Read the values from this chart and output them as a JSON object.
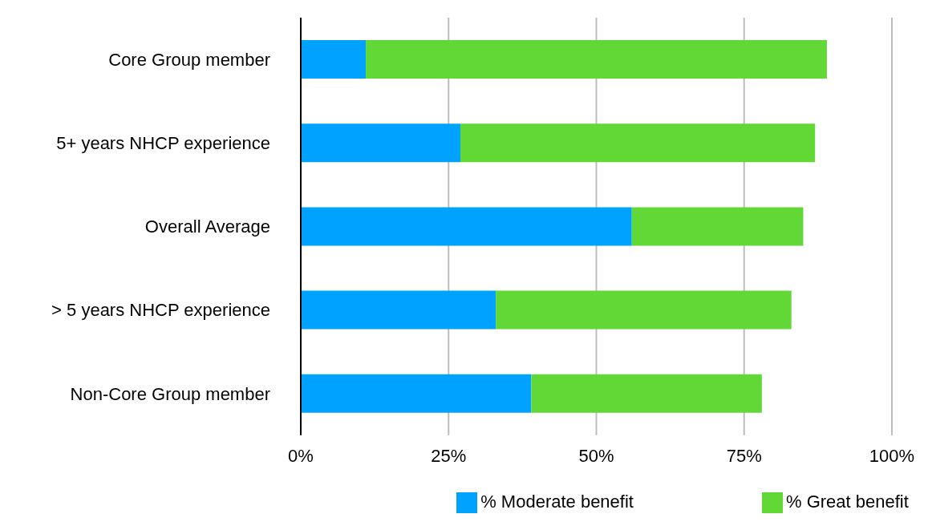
{
  "chart_data": {
    "type": "bar",
    "orientation": "horizontal",
    "stacked": true,
    "categories": [
      "Core Group member",
      "5+ years NHCP experience",
      "Overall Average",
      "> 5 years NHCP experience",
      "Non-Core Group member"
    ],
    "series": [
      {
        "name": "% Moderate benefit",
        "color": "#00a2ff",
        "values": [
          11,
          27,
          56,
          33,
          39
        ]
      },
      {
        "name": "% Great benefit",
        "color": "#61d836",
        "values": [
          78,
          60,
          29,
          50,
          39
        ]
      }
    ],
    "xlim": [
      0,
      100
    ],
    "xticks": [
      {
        "value": 0,
        "label": "0%"
      },
      {
        "value": 25,
        "label": "25%"
      },
      {
        "value": 50,
        "label": "50%"
      },
      {
        "value": 75,
        "label": "75%"
      },
      {
        "value": 100,
        "label": "100%"
      }
    ],
    "grid": "x",
    "legend": "bottom"
  }
}
